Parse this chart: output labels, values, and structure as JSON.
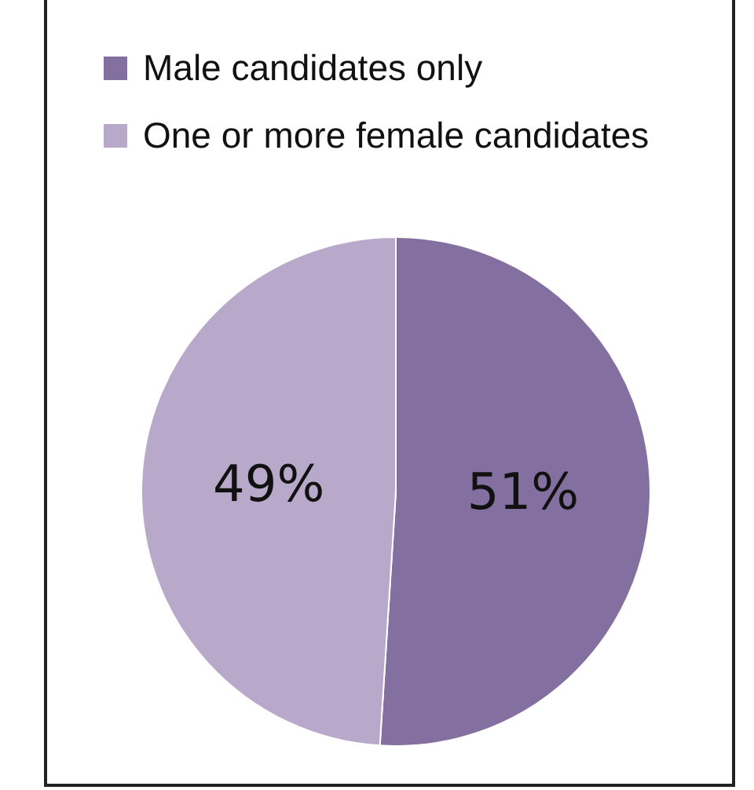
{
  "chart_data": {
    "type": "pie",
    "categories": [
      "Male candidates only",
      "One or more female candidates"
    ],
    "values": [
      51,
      49
    ],
    "colors": [
      "#8470a0",
      "#b8a9ca"
    ],
    "legend": "top",
    "data_labels": true,
    "value_labels": [
      "51%",
      "49%"
    ]
  }
}
